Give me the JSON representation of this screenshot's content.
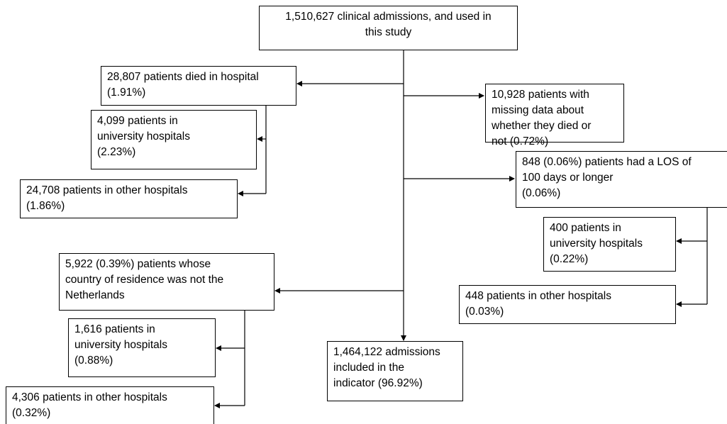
{
  "nodes": [
    {
      "lines": [
        "1,510,627 clinical admissions, and used in",
        "this study"
      ]
    },
    {
      "lines": [
        "28,807 patients died in hospital",
        "(1.91%)"
      ]
    },
    {
      "lines": [
        "4,099 patients in",
        "university hospitals",
        "(2.23%)"
      ]
    },
    {
      "lines": [
        "24,708 patients in other hospitals",
        "(1.86%)"
      ]
    },
    {
      "lines": [
        "10,928 patients with",
        "missing data about",
        "whether they died or",
        "not (0.72%)"
      ]
    },
    {
      "lines": [
        "848 (0.06%) patients had a LOS of",
        "100 days or longer",
        "(0.06%)"
      ]
    },
    {
      "lines": [
        "400 patients in",
        "university hospitals",
        "(0.22%)"
      ]
    },
    {
      "lines": [
        "448 patients in other hospitals",
        "(0.03%)"
      ]
    },
    {
      "lines": [
        "5,922 (0.39%) patients whose",
        "country of residence was not the",
        "Netherlands"
      ]
    },
    {
      "lines": [
        "1,616 patients in",
        "university hospitals",
        "(0.88%)"
      ]
    },
    {
      "lines": [
        "4,306 patients in other hospitals",
        "(0.32%)"
      ]
    },
    {
      "lines": [
        "1,464,122 admissions",
        "included in the",
        "indicator (96.92%)"
      ]
    }
  ]
}
